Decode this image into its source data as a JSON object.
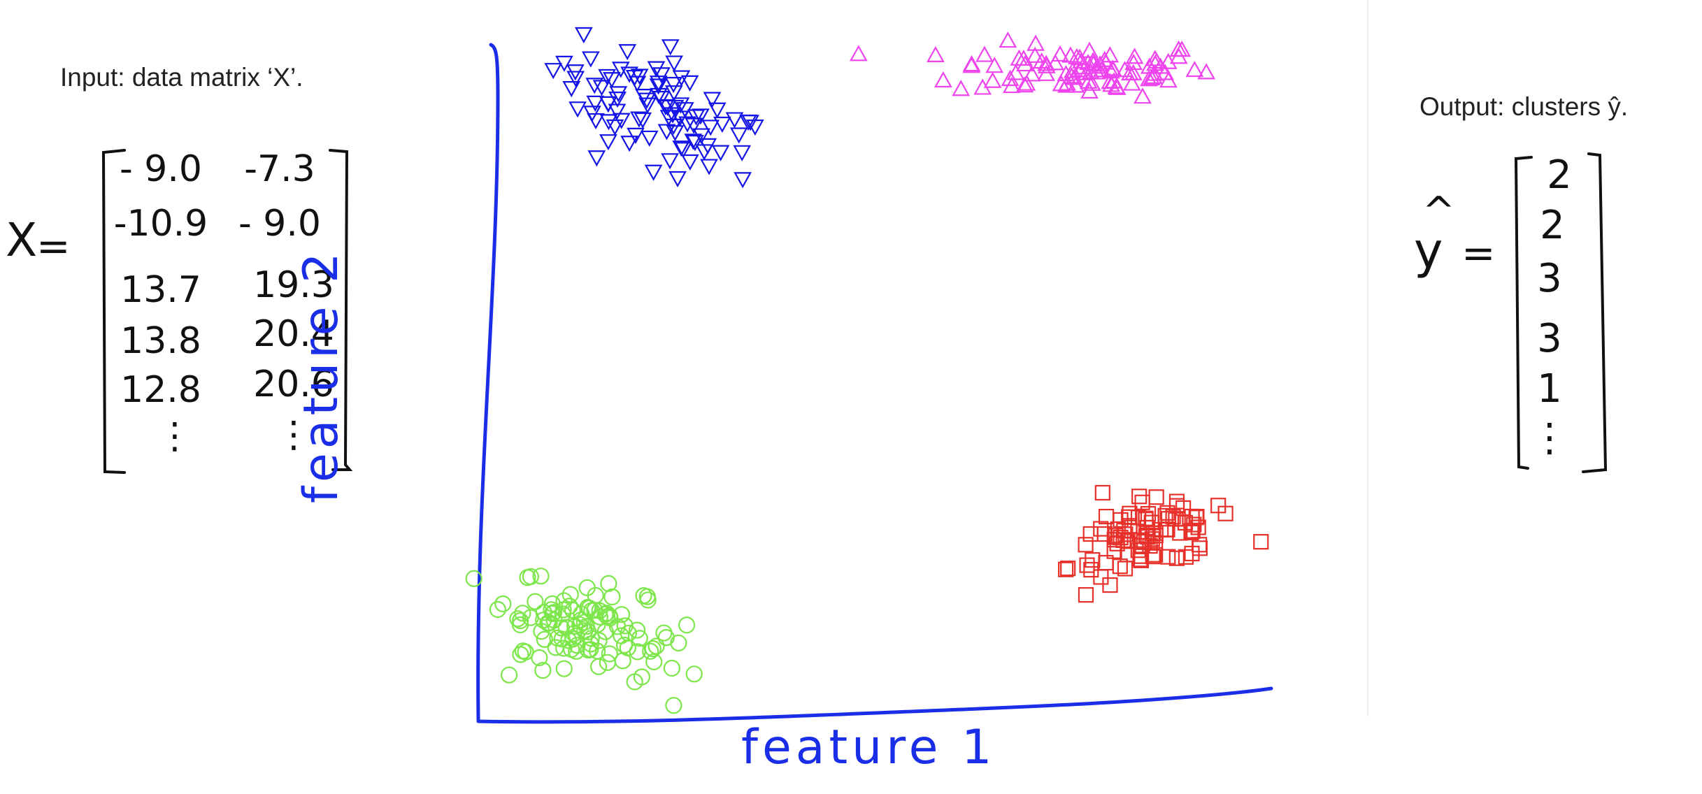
{
  "input": {
    "caption": "Input: data matrix ‘X’.",
    "symbol": "X",
    "equals": "=",
    "rows": [
      [
        "- 9.0",
        "-7.3"
      ],
      [
        "-10.9",
        "- 9.0"
      ],
      [
        "13.7",
        "19.3"
      ],
      [
        "13.8",
        "20.4"
      ],
      [
        "12.8",
        "20.6"
      ],
      [
        "⋮",
        "⋮"
      ]
    ]
  },
  "output": {
    "caption": "Output: clusters ŷ.",
    "symbol": "y",
    "hat": "^",
    "equals": "=",
    "values": [
      "2",
      "2",
      "3",
      "3",
      "1",
      "⋮"
    ]
  },
  "plot": {
    "xlabel": "feature 1",
    "ylabel": "feature 2",
    "colors": {
      "axis": "#1a2ee8",
      "blue": "#1414e6",
      "magenta": "#ee44ee",
      "green": "#7de64a",
      "red": "#e8302a"
    },
    "clusters": [
      {
        "marker": "triangle-down",
        "color": "#1414e6",
        "center": [
          -9.5,
          18.5
        ],
        "spread": [
          2.4,
          1.3
        ],
        "n": 90,
        "rot": -35
      },
      {
        "marker": "triangle-up",
        "color": "#ee44ee",
        "center": [
          9.0,
          20.8
        ],
        "spread": [
          2.8,
          0.7
        ],
        "n": 90,
        "rot": 0
      },
      {
        "marker": "circle",
        "color": "#7de64a",
        "center": [
          -12.5,
          -8.8
        ],
        "spread": [
          1.9,
          1.1
        ],
        "n": 110,
        "rot": -25
      },
      {
        "marker": "square",
        "color": "#e8302a",
        "center": [
          11.8,
          -4.0
        ],
        "spread": [
          1.9,
          0.9
        ],
        "n": 90,
        "rot": 25
      }
    ],
    "xlim": [
      -17,
      17
    ],
    "ylim": [
      -13,
      23
    ]
  }
}
